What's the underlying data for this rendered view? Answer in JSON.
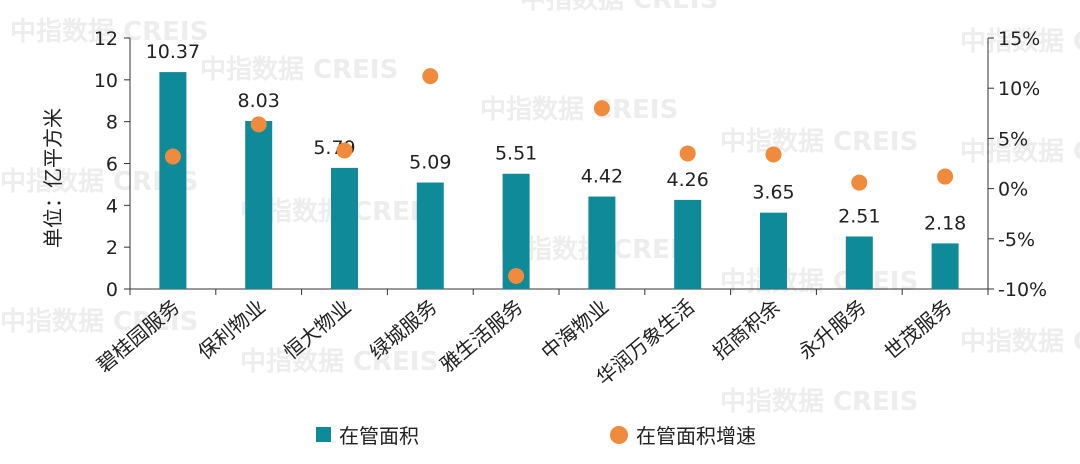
{
  "chart_data": {
    "type": "bar",
    "categories": [
      "碧桂园服务",
      "保利物业",
      "恒大物业",
      "绿城服务",
      "雅生活服务",
      "中海物业",
      "华润万象生活",
      "招商积余",
      "永升服务",
      "世茂服务"
    ],
    "series": [
      {
        "name": "在管面积",
        "type": "bar",
        "axis": "left",
        "values": [
          10.37,
          8.03,
          5.79,
          5.09,
          5.51,
          4.42,
          4.26,
          3.65,
          2.51,
          2.18
        ],
        "labels": [
          "10.37",
          "8.03",
          "5.79",
          "5.09",
          "5.51",
          "4.42",
          "4.26",
          "3.65",
          "2.51",
          "2.18"
        ],
        "color": "#0e8a98"
      },
      {
        "name": "在管面积增速",
        "type": "scatter",
        "axis": "right",
        "values": [
          3.2,
          6.4,
          3.8,
          11.2,
          -8.7,
          8.0,
          3.5,
          3.4,
          0.6,
          1.2
        ],
        "color": "#f08a3c"
      }
    ],
    "ylabel": "单位：亿平方米",
    "ylim": [
      0,
      12
    ],
    "yticks": [
      "0",
      "2",
      "4",
      "6",
      "8",
      "10",
      "12"
    ],
    "y2lim": [
      -10,
      15
    ],
    "y2ticks": [
      "-10%",
      "-5%",
      "0%",
      "5%",
      "10%",
      "15%"
    ],
    "legend_position": "bottom"
  },
  "watermark": "中指数据 CREIS"
}
